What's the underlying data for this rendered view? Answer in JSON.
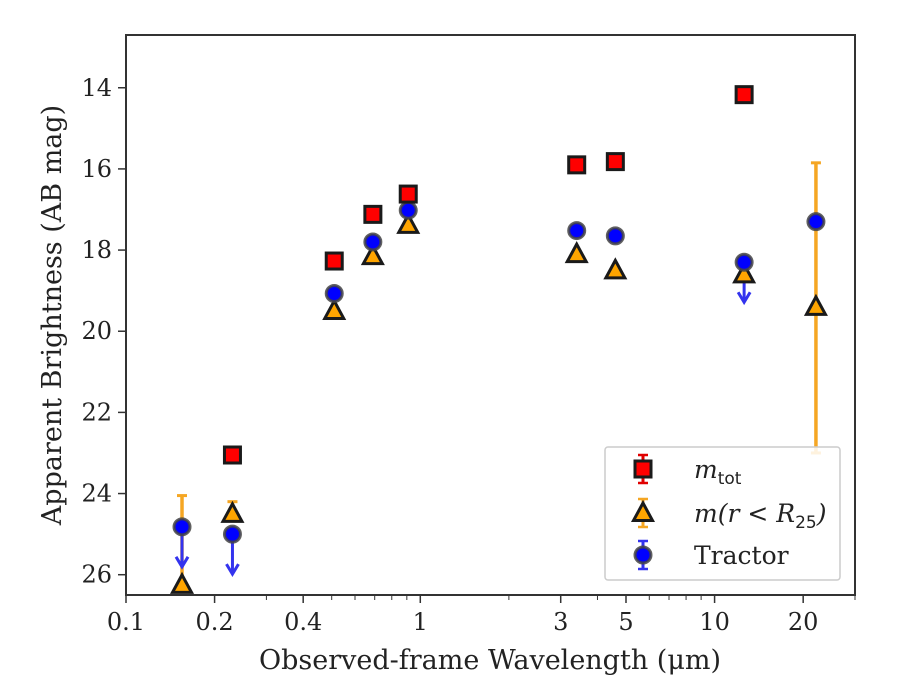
{
  "chart_data": {
    "type": "scatter",
    "xlabel": "Observed-frame Wavelength (μm)",
    "ylabel": "Apparent Brightness (AB mag)",
    "xscale": "log",
    "xlim": [
      0.1,
      30
    ],
    "ylim": [
      26.5,
      12.7
    ],
    "y_inverted": true,
    "grid": false,
    "legend_placement": "lower-right",
    "x_ticks": [
      {
        "value": 0.1,
        "label": "0.1"
      },
      {
        "value": 0.2,
        "label": "0.2"
      },
      {
        "value": 0.4,
        "label": "0.4"
      },
      {
        "value": 1,
        "label": "1"
      },
      {
        "value": 3,
        "label": "3"
      },
      {
        "value": 5,
        "label": "5"
      },
      {
        "value": 10,
        "label": "10"
      },
      {
        "value": 20,
        "label": "20"
      }
    ],
    "y_ticks": [
      {
        "value": 14,
        "label": "14"
      },
      {
        "value": 16,
        "label": "16"
      },
      {
        "value": 18,
        "label": "18"
      },
      {
        "value": 20,
        "label": "20"
      },
      {
        "value": 22,
        "label": "22"
      },
      {
        "value": 24,
        "label": "24"
      },
      {
        "value": 26,
        "label": "26"
      }
    ],
    "series": [
      {
        "name": "m_tot",
        "legend_main": "m",
        "legend_sub": "tot",
        "marker": "square",
        "color": "#ff0000",
        "edge": "#1a1a1a",
        "errcolor": "#e00000",
        "points": [
          {
            "x": 0.23,
            "y": 23.05
          },
          {
            "x": 0.51,
            "y": 18.27
          },
          {
            "x": 0.69,
            "y": 17.12
          },
          {
            "x": 0.91,
            "y": 16.62
          },
          {
            "x": 3.4,
            "y": 15.9
          },
          {
            "x": 4.6,
            "y": 15.82
          },
          {
            "x": 12.6,
            "y": 14.17
          }
        ]
      },
      {
        "name": "m(r < R25)",
        "legend_main": "m(r < R",
        "legend_sub": "25",
        "legend_close": ")",
        "marker": "triangle",
        "color": "#ffa500",
        "edge": "#1a1a1a",
        "errcolor": "#f5a623",
        "points": [
          {
            "x": 0.155,
            "y": 26.25,
            "yerr_up": 2.2,
            "upper_limit": false
          },
          {
            "x": 0.23,
            "y": 24.5,
            "yerr_up": 0.3
          },
          {
            "x": 0.51,
            "y": 19.5
          },
          {
            "x": 0.69,
            "y": 18.15
          },
          {
            "x": 0.91,
            "y": 17.38
          },
          {
            "x": 3.4,
            "y": 18.1
          },
          {
            "x": 4.6,
            "y": 18.5
          },
          {
            "x": 12.6,
            "y": 18.6
          },
          {
            "x": 22.1,
            "y": 19.4,
            "yerr_up": 3.55,
            "yerr_down": 3.6
          }
        ]
      },
      {
        "name": "Tractor",
        "legend_main": "Tractor",
        "marker": "circle",
        "color": "#0000ff",
        "edge": "#444444",
        "errcolor": "#3333ee",
        "points": [
          {
            "x": 0.155,
            "y": 24.82,
            "upper_limit": true
          },
          {
            "x": 0.23,
            "y": 25.0,
            "upper_limit": true
          },
          {
            "x": 0.51,
            "y": 19.07
          },
          {
            "x": 0.69,
            "y": 17.8
          },
          {
            "x": 0.91,
            "y": 17.02
          },
          {
            "x": 3.4,
            "y": 17.52
          },
          {
            "x": 4.6,
            "y": 17.65
          },
          {
            "x": 12.6,
            "y": 18.3,
            "upper_limit": true
          },
          {
            "x": 22.1,
            "y": 17.3
          }
        ]
      }
    ]
  }
}
